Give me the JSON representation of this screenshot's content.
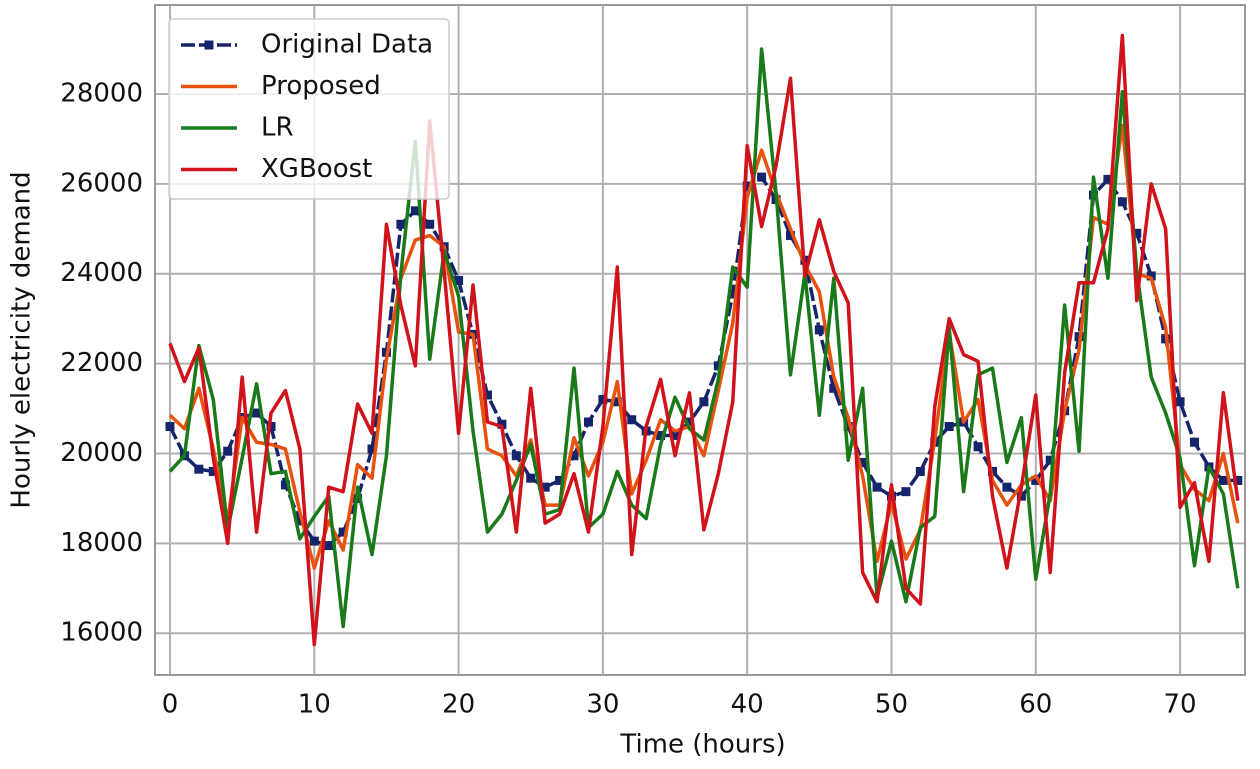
{
  "chart_data": {
    "type": "line",
    "xlabel": "Time (hours)",
    "ylabel": "Hourly electricity demand",
    "x": [
      0,
      1,
      2,
      3,
      4,
      5,
      6,
      7,
      8,
      9,
      10,
      11,
      12,
      13,
      14,
      15,
      16,
      17,
      18,
      19,
      20,
      21,
      22,
      23,
      24,
      25,
      26,
      27,
      28,
      29,
      30,
      31,
      32,
      33,
      34,
      35,
      36,
      37,
      38,
      39,
      40,
      41,
      42,
      43,
      44,
      45,
      46,
      47,
      48,
      49,
      50,
      51,
      52,
      53,
      54,
      55,
      56,
      57,
      58,
      59,
      60,
      61,
      62,
      63,
      64,
      65,
      66,
      67,
      68,
      69,
      70,
      71,
      72,
      73,
      74
    ],
    "series": [
      {
        "name": "Original Data",
        "color": "#15256b",
        "marker": "square",
        "values": [
          20600,
          19950,
          19650,
          19600,
          20050,
          20800,
          20900,
          20600,
          19300,
          18500,
          18050,
          17950,
          18250,
          19000,
          20100,
          22250,
          25100,
          25400,
          25100,
          24600,
          23850,
          22650,
          21300,
          20650,
          19950,
          19450,
          19250,
          19400,
          19950,
          20700,
          21200,
          21150,
          20750,
          20500,
          20400,
          20400,
          20700,
          21150,
          21950,
          23550,
          25950,
          26150,
          25650,
          24850,
          24300,
          22750,
          21450,
          20600,
          19800,
          19250,
          19050,
          19150,
          19600,
          20250,
          20600,
          20700,
          20150,
          19600,
          19250,
          19050,
          19400,
          19850,
          20950,
          22600,
          25750,
          26100,
          25600,
          24900,
          23950,
          22550,
          21150,
          20250,
          19700,
          19400,
          19400
        ]
      },
      {
        "name": "Proposed",
        "color": "#e8520e",
        "values": [
          20850,
          20550,
          21450,
          20100,
          18500,
          20800,
          20250,
          20200,
          20100,
          18700,
          17450,
          18500,
          17850,
          19750,
          19450,
          22100,
          23900,
          24750,
          24850,
          24600,
          22700,
          22650,
          20100,
          19950,
          19500,
          20300,
          18850,
          18850,
          20350,
          19500,
          20250,
          21600,
          19100,
          19850,
          20750,
          20500,
          20600,
          19950,
          21400,
          22900,
          25700,
          26750,
          25800,
          25000,
          24200,
          23600,
          21700,
          20800,
          19500,
          17600,
          18900,
          17650,
          18300,
          20300,
          22700,
          20700,
          21200,
          19400,
          18850,
          19300,
          19500,
          18950,
          20950,
          22300,
          25250,
          25100,
          27300,
          24000,
          23900,
          22800,
          19750,
          19200,
          18950,
          20000,
          18450
        ]
      },
      {
        "name": "LR",
        "color": "#1a7a1a",
        "values": [
          19600,
          19950,
          22400,
          21200,
          18300,
          19900,
          21550,
          19550,
          19600,
          18100,
          18600,
          19050,
          16150,
          19250,
          17750,
          19950,
          24000,
          26950,
          22100,
          24500,
          23500,
          20500,
          18250,
          18650,
          19400,
          20200,
          18650,
          18750,
          21900,
          18350,
          18650,
          19600,
          18850,
          18550,
          20200,
          21250,
          20550,
          20300,
          21650,
          24150,
          23700,
          29000,
          25800,
          21750,
          24000,
          20850,
          23900,
          19850,
          21450,
          16800,
          18050,
          16700,
          18350,
          18600,
          22800,
          19150,
          21750,
          21900,
          19800,
          20800,
          17200,
          19100,
          23300,
          20050,
          26150,
          23900,
          28050,
          24050,
          21700,
          20900,
          19900,
          17500,
          19700,
          19100,
          17000
        ]
      },
      {
        "name": "XGBoost",
        "color": "#d0121a",
        "values": [
          22450,
          21600,
          22350,
          19900,
          18000,
          21700,
          18250,
          20900,
          21400,
          20100,
          15750,
          19250,
          19150,
          21100,
          20450,
          25100,
          23300,
          21950,
          27400,
          24050,
          20450,
          23750,
          20700,
          20600,
          18250,
          21450,
          18450,
          18650,
          19550,
          18250,
          20600,
          24150,
          17750,
          20600,
          21650,
          19950,
          21350,
          18300,
          19550,
          21150,
          26850,
          25050,
          26400,
          28350,
          23950,
          25200,
          24050,
          23350,
          17350,
          16700,
          19300,
          17000,
          16650,
          21050,
          23000,
          22200,
          22050,
          19050,
          17450,
          19250,
          21300,
          17350,
          21800,
          23800,
          23800,
          25000,
          29300,
          23400,
          26000,
          25000,
          18800,
          19350,
          17600,
          21350,
          18950
        ]
      }
    ],
    "xlim": [
      -1.04,
      74.5
    ],
    "xticks": [
      0,
      10,
      20,
      30,
      40,
      50,
      60,
      70
    ],
    "ylim": [
      15070,
      29980
    ],
    "yticks": [
      16000,
      18000,
      20000,
      22000,
      24000,
      26000,
      28000
    ],
    "grid": true,
    "legend": "upper left"
  }
}
